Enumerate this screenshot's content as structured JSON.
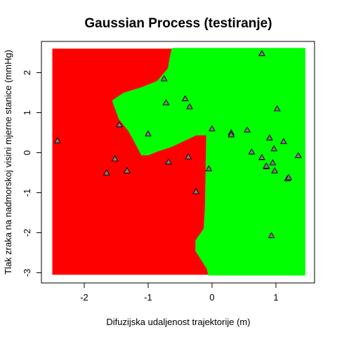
{
  "chart_data": {
    "type": "scatter",
    "title": "Gaussian Process (testiranje)",
    "xlabel": "Difuzijska udaljenost trajektorije (m)",
    "ylabel": "Tlak zraka na nadmorskoj visini mjerne stanice (mmHg)",
    "xlim": [
      -2.6,
      1.6
    ],
    "ylim": [
      -3.1,
      2.7
    ],
    "xticks": [
      "-2",
      "-1",
      "0",
      "1"
    ],
    "yticks": [
      "-3",
      "-2",
      "-1",
      "0",
      "1",
      "2"
    ],
    "grid": false,
    "colors": {
      "region_a": "#ff0000",
      "region_b": "#00ff00",
      "points": "#808080",
      "frame": "#000000"
    },
    "regions": {
      "green": [
        [
          -0.62,
          2.6
        ],
        [
          1.45,
          2.6
        ],
        [
          1.45,
          -3.05
        ],
        [
          -0.05,
          -3.05
        ],
        [
          -0.07,
          -2.9
        ],
        [
          -0.15,
          -2.7
        ],
        [
          -0.25,
          -2.45
        ],
        [
          -0.25,
          -2.2
        ],
        [
          -0.12,
          -1.9
        ],
        [
          -0.1,
          -1.35
        ],
        [
          -0.08,
          0.45
        ],
        [
          -0.25,
          0.45
        ],
        [
          -0.45,
          0.3
        ],
        [
          -0.65,
          0.15
        ],
        [
          -0.85,
          0.05
        ],
        [
          -1.0,
          -0.05
        ],
        [
          -1.1,
          -0.05
        ],
        [
          -1.18,
          0.2
        ],
        [
          -1.3,
          0.55
        ],
        [
          -1.45,
          0.85
        ],
        [
          -1.52,
          1.15
        ],
        [
          -1.55,
          1.3
        ],
        [
          -1.38,
          1.48
        ],
        [
          -1.1,
          1.62
        ],
        [
          -0.85,
          1.78
        ],
        [
          -0.68,
          2.1
        ],
        [
          -0.65,
          2.4
        ]
      ]
    },
    "points": {
      "x": [
        -2.42,
        -1.65,
        -1.52,
        -1.45,
        -1.33,
        -1.0,
        -0.75,
        -0.72,
        -0.68,
        -0.42,
        -0.35,
        -0.37,
        -0.25,
        -0.05,
        0.0,
        0.3,
        0.3,
        0.55,
        0.62,
        0.78,
        0.78,
        0.85,
        0.85,
        0.9,
        0.95,
        0.97,
        0.98,
        1.02,
        1.12,
        1.18,
        1.2,
        1.35,
        0.93
      ],
      "y": [
        0.3,
        -0.5,
        -0.15,
        0.7,
        -0.45,
        0.47,
        1.85,
        1.25,
        -0.23,
        1.35,
        1.15,
        -0.1,
        -0.97,
        -0.4,
        0.6,
        0.5,
        0.45,
        0.57,
        0.02,
        -0.12,
        2.48,
        -0.35,
        -0.33,
        0.37,
        -0.25,
        0.1,
        -0.45,
        1.1,
        0.28,
        -0.65,
        -0.62,
        -0.07,
        -2.07
      ]
    }
  }
}
